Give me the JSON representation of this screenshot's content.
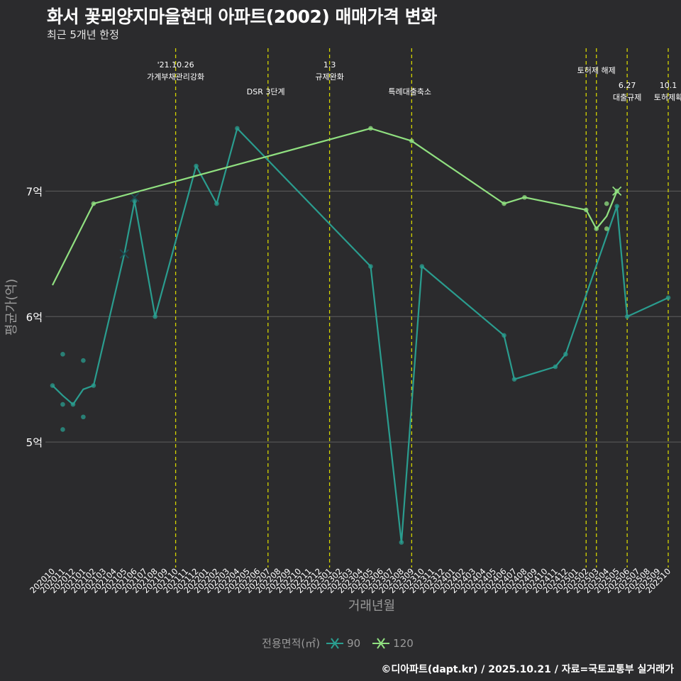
{
  "title": "화서 꽃뫼양지마을현대 아파트(2002) 매매가격 변화",
  "subtitle": "최근 5개년 한정",
  "caption": "©디아파트(dapt.kr) / 2025.10.21 / 자료=국토교통부 실거래가",
  "colors": {
    "background": "#2b2b2d",
    "grid": "#5e5e5e",
    "event_line": "#d4d400",
    "series_90": "#2a9d8f",
    "series_120": "#90e080"
  },
  "chart_data": {
    "type": "line",
    "xlabel": "거래년월",
    "ylabel": "평균가(억)",
    "ylim": [
      4.0,
      8.15
    ],
    "yticks": [
      {
        "value": 5,
        "label": "5억"
      },
      {
        "value": 6,
        "label": "6억"
      },
      {
        "value": 7,
        "label": "7억"
      }
    ],
    "categories": [
      "202010",
      "202011",
      "202012",
      "202101",
      "202102",
      "202103",
      "202104",
      "202105",
      "202106",
      "202107",
      "202108",
      "202109",
      "202110",
      "202111",
      "202112",
      "202201",
      "202202",
      "202203",
      "202204",
      "202205",
      "202206",
      "202207",
      "202208",
      "202209",
      "202210",
      "202211",
      "202212",
      "202301",
      "202302",
      "202303",
      "202304",
      "202305",
      "202306",
      "202307",
      "202308",
      "202309",
      "202310",
      "202311",
      "202312",
      "202401",
      "202402",
      "202403",
      "202404",
      "202405",
      "202406",
      "202407",
      "202408",
      "202409",
      "202410",
      "202411",
      "202412",
      "202501",
      "202502",
      "202503",
      "202504",
      "202505",
      "202506",
      "202507",
      "202508",
      "202509",
      "202510"
    ],
    "series": [
      {
        "name": "90",
        "color": "#2a9d8f",
        "line": [
          [
            0,
            5.45
          ],
          [
            1,
            5.37
          ],
          [
            2,
            5.3
          ],
          [
            3,
            5.42
          ],
          [
            4,
            5.45
          ],
          [
            7,
            6.5
          ],
          [
            8,
            6.92
          ],
          [
            10,
            6.0
          ],
          [
            14,
            7.2
          ],
          [
            16,
            6.9
          ],
          [
            18,
            7.5
          ],
          [
            31,
            6.4
          ],
          [
            34,
            4.2
          ],
          [
            36,
            6.4
          ],
          [
            44,
            5.85
          ],
          [
            45,
            5.5
          ],
          [
            49,
            5.6
          ],
          [
            50,
            5.7
          ],
          [
            55,
            6.88
          ],
          [
            56,
            6.0
          ],
          [
            60,
            6.15
          ]
        ],
        "points": [
          [
            0,
            5.45
          ],
          [
            1,
            5.7
          ],
          [
            1,
            5.3
          ],
          [
            1,
            5.1
          ],
          [
            2,
            5.3
          ],
          [
            3,
            5.65
          ],
          [
            3,
            5.2
          ],
          [
            4,
            5.45
          ],
          [
            8,
            6.92
          ],
          [
            10,
            6.0
          ],
          [
            14,
            7.2
          ],
          [
            16,
            6.9
          ],
          [
            18,
            7.5
          ],
          [
            31,
            6.4
          ],
          [
            34,
            4.2
          ],
          [
            36,
            6.4
          ],
          [
            44,
            5.85
          ],
          [
            45,
            5.5
          ],
          [
            49,
            5.6
          ],
          [
            50,
            5.7
          ],
          [
            55,
            6.88
          ],
          [
            56,
            6.0
          ],
          [
            60,
            6.15
          ]
        ],
        "crosses": [
          [
            7,
            6.5
          ],
          [
            8,
            6.95
          ]
        ]
      },
      {
        "name": "120",
        "color": "#90e080",
        "line": [
          [
            0,
            6.25
          ],
          [
            4,
            6.9
          ],
          [
            31,
            7.5
          ],
          [
            35,
            7.4
          ],
          [
            44,
            6.9
          ],
          [
            46,
            6.95
          ],
          [
            52,
            6.85
          ],
          [
            53,
            6.7
          ],
          [
            54,
            6.8
          ],
          [
            55,
            7.0
          ]
        ],
        "points": [
          [
            4,
            6.9
          ],
          [
            31,
            7.5
          ],
          [
            35,
            7.4
          ],
          [
            44,
            6.9
          ],
          [
            46,
            6.95
          ],
          [
            52,
            6.85
          ],
          [
            53,
            6.7
          ],
          [
            54,
            6.9
          ],
          [
            54,
            6.7
          ],
          [
            55,
            7.0
          ]
        ],
        "crosses": [
          [
            55,
            7.0
          ]
        ]
      }
    ],
    "events": [
      {
        "x": 12.0,
        "lines": [
          "'21.10.26",
          "가계부채관리강화"
        ],
        "row": 0
      },
      {
        "x": 21.0,
        "lines": [
          "DSR 3단계"
        ],
        "row": 1
      },
      {
        "x": 27.0,
        "lines": [
          "1.3",
          "규제완화"
        ],
        "row": 0
      },
      {
        "x": 35.0,
        "lines": [
          "특례대출축소"
        ],
        "row": 1
      },
      {
        "x": 52.0,
        "lines": [],
        "row": 0
      },
      {
        "x": 53.0,
        "lines": [
          "토허제 해제"
        ],
        "row": 0
      },
      {
        "x": 56.0,
        "lines": [
          "6.27",
          "대출규제"
        ],
        "row": 2
      },
      {
        "x": 60.0,
        "lines": [
          "10.1",
          "토허제확"
        ],
        "row": 2
      }
    ],
    "legend": {
      "title": "전용면적(㎡)",
      "position": "bottom",
      "items": [
        "90",
        "120"
      ]
    }
  }
}
